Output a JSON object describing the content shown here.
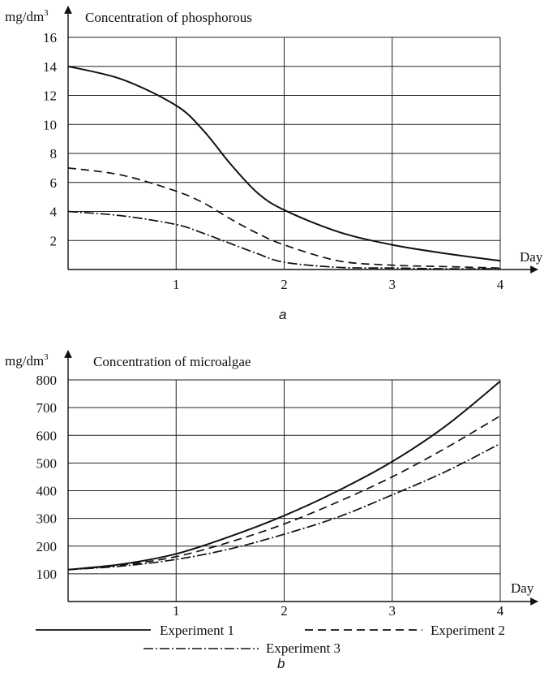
{
  "legend": {
    "items": [
      {
        "label": "Experiment 1",
        "dash": "solid"
      },
      {
        "label": "Experiment 2",
        "dash": "dashed"
      },
      {
        "label": "Experiment 3",
        "dash": "dashdot"
      }
    ]
  },
  "chart_data": [
    {
      "type": "line",
      "panel_label": "a",
      "title": "Concentration of phosphorous",
      "ylabel": "mg/dm3",
      "xlabel": "Day",
      "xlim": [
        0,
        4
      ],
      "ylim": [
        0,
        16
      ],
      "xticks": [
        1,
        2,
        3,
        4
      ],
      "yticks": [
        2,
        4,
        6,
        8,
        10,
        12,
        14,
        16
      ],
      "grid": true,
      "series": [
        {
          "name": "Experiment 1",
          "dash": "solid",
          "x": [
            0,
            0.5,
            1,
            1.25,
            1.5,
            1.75,
            2,
            2.5,
            3,
            3.5,
            4
          ],
          "y": [
            14,
            13.1,
            11.3,
            9.6,
            7.3,
            5.3,
            4.1,
            2.6,
            1.7,
            1.1,
            0.6
          ]
        },
        {
          "name": "Experiment 2",
          "dash": "dashed",
          "x": [
            0,
            0.5,
            1,
            1.25,
            1.5,
            1.75,
            2,
            2.5,
            3,
            3.5,
            4
          ],
          "y": [
            7,
            6.5,
            5.4,
            4.6,
            3.5,
            2.5,
            1.7,
            0.6,
            0.3,
            0.2,
            0.1
          ]
        },
        {
          "name": "Experiment 3",
          "dash": "dashdot",
          "x": [
            0,
            0.5,
            1,
            1.25,
            1.5,
            1.75,
            2,
            2.5,
            3,
            3.5,
            4
          ],
          "y": [
            4,
            3.7,
            3.1,
            2.5,
            1.8,
            1.1,
            0.5,
            0.15,
            0.1,
            0.05,
            0.05
          ]
        }
      ]
    },
    {
      "type": "line",
      "panel_label": "b",
      "title": "Concentration of microalgae",
      "ylabel": "mg/dm3",
      "xlabel": "Day",
      "xlim": [
        0,
        4
      ],
      "ylim": [
        0,
        800
      ],
      "xticks": [
        1,
        2,
        3,
        4
      ],
      "yticks": [
        100,
        200,
        300,
        400,
        500,
        600,
        700,
        800
      ],
      "grid": true,
      "series": [
        {
          "name": "Experiment 1",
          "dash": "solid",
          "x": [
            0,
            0.5,
            1,
            1.5,
            2,
            2.5,
            3,
            3.5,
            4
          ],
          "y": [
            115,
            135,
            172,
            235,
            310,
            400,
            505,
            635,
            795
          ]
        },
        {
          "name": "Experiment 2",
          "dash": "dashed",
          "x": [
            0,
            0.5,
            1,
            1.5,
            2,
            2.5,
            3,
            3.5,
            4
          ],
          "y": [
            115,
            132,
            162,
            215,
            280,
            360,
            450,
            555,
            670
          ]
        },
        {
          "name": "Experiment 3",
          "dash": "dashdot",
          "x": [
            0,
            0.5,
            1,
            1.5,
            2,
            2.5,
            3,
            3.5,
            4
          ],
          "y": [
            115,
            128,
            152,
            190,
            243,
            305,
            385,
            470,
            570
          ]
        }
      ]
    }
  ]
}
